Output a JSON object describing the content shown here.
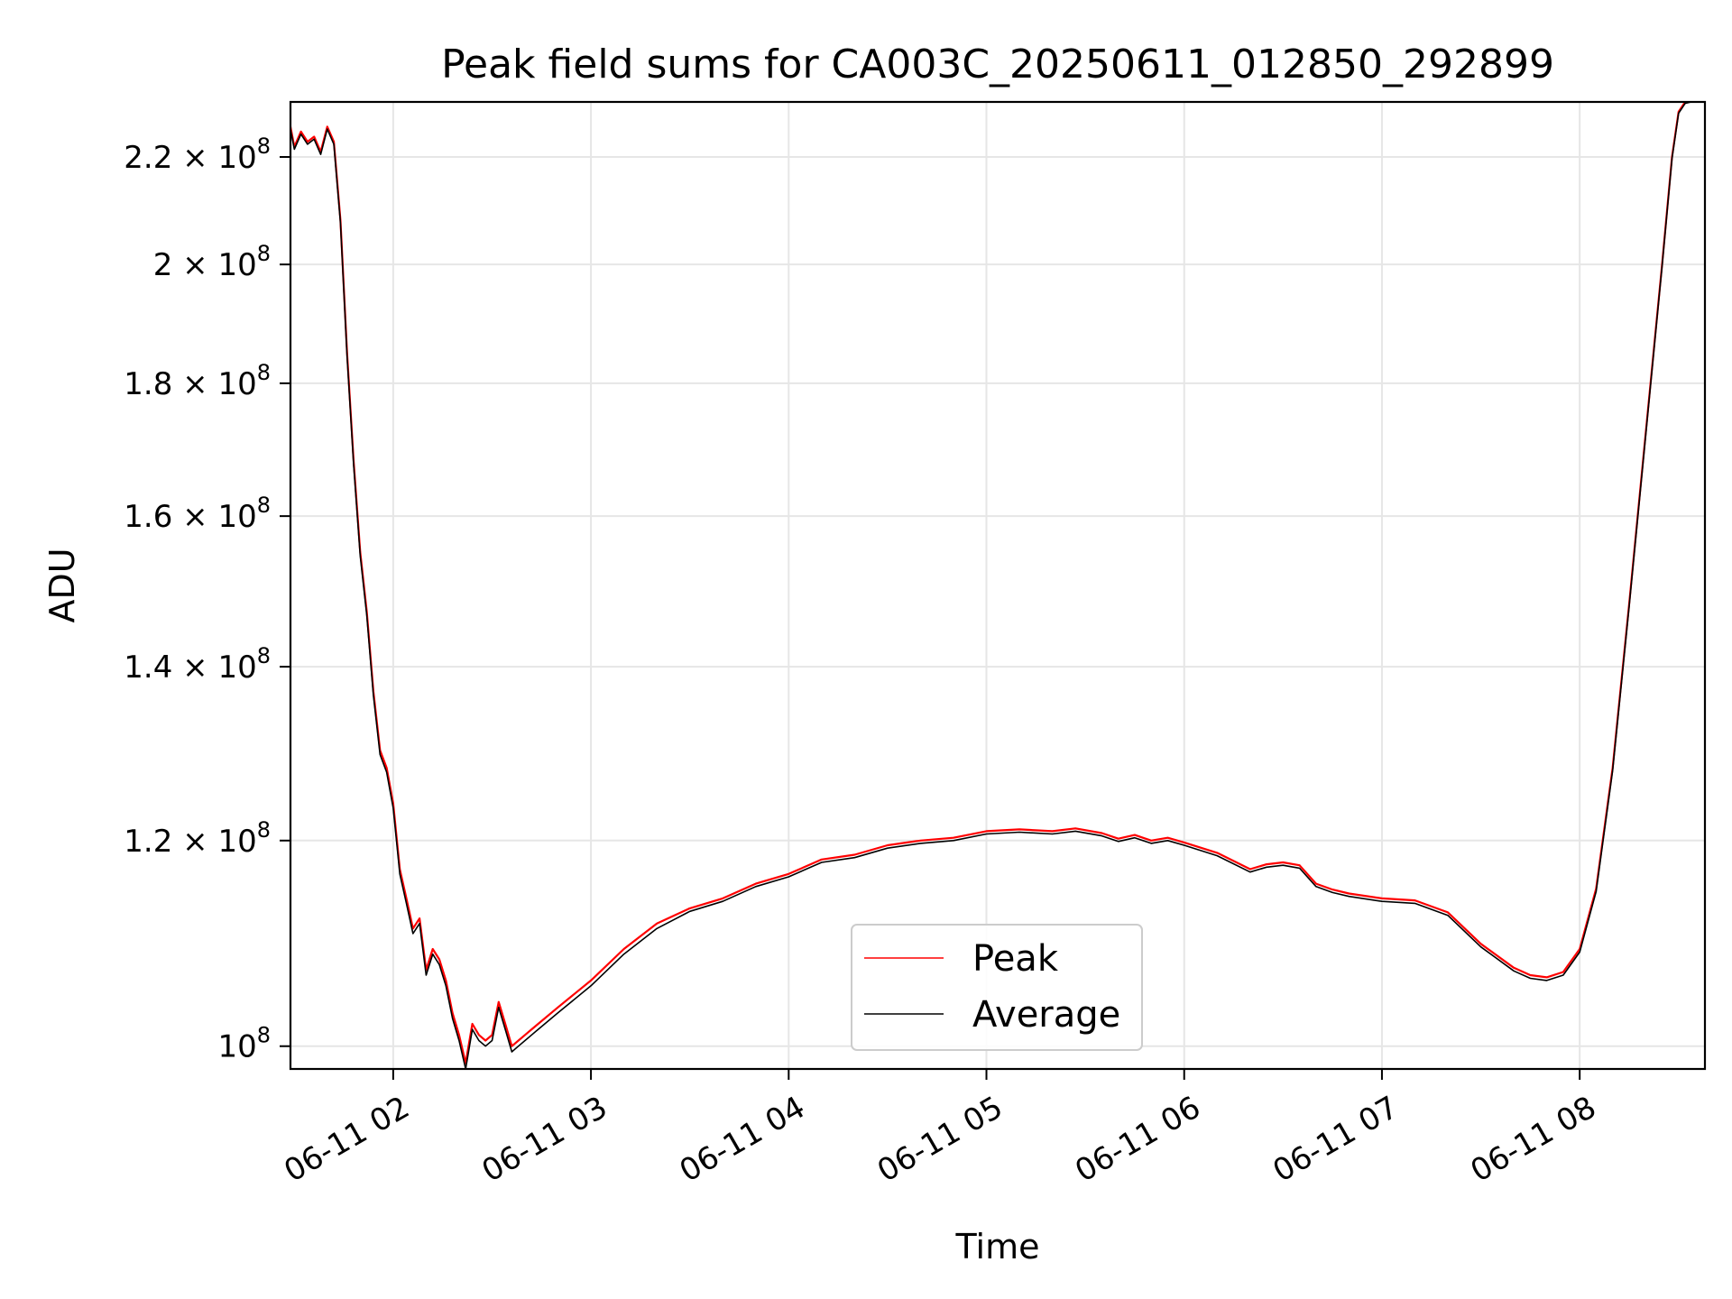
{
  "chart_data": {
    "type": "line",
    "title": "Peak field sums for CA003C_20250611_012850_292899",
    "xlabel": "Time",
    "ylabel": "ADU",
    "grid": true,
    "legend_position": "lower center",
    "x_tick_labels": [
      "06-11 02",
      "06-11 03",
      "06-11 04",
      "06-11 05",
      "06-11 06",
      "06-11 07",
      "06-11 08"
    ],
    "xlim": [
      "06-11 01:28:50",
      "06-11 08:38:00"
    ],
    "y_scale": "log",
    "ylim": [
      98000000,
      231000000
    ],
    "y_ticks": [
      {
        "value": 100000000,
        "mantissa": "",
        "base": "10",
        "exp": "8"
      },
      {
        "value": 120000000,
        "mantissa": "1.2",
        "base": "10",
        "exp": "8"
      },
      {
        "value": 140000000,
        "mantissa": "1.4",
        "base": "10",
        "exp": "8"
      },
      {
        "value": 160000000,
        "mantissa": "1.6",
        "base": "10",
        "exp": "8"
      },
      {
        "value": 180000000,
        "mantissa": "1.8",
        "base": "10",
        "exp": "8"
      },
      {
        "value": 200000000,
        "mantissa": "2",
        "base": "10",
        "exp": "8"
      },
      {
        "value": 220000000,
        "mantissa": "2.2",
        "base": "10",
        "exp": "8"
      }
    ],
    "series": [
      {
        "name": "Peak",
        "color": "#ff0000",
        "x": [
          "06-11 01:28:50",
          "06-11 01:30:00",
          "06-11 01:32:00",
          "06-11 01:34:00",
          "06-11 01:36:00",
          "06-11 01:38:00",
          "06-11 01:40:00",
          "06-11 01:42:00",
          "06-11 01:44:00",
          "06-11 01:46:00",
          "06-11 01:48:00",
          "06-11 01:50:00",
          "06-11 01:52:00",
          "06-11 01:54:00",
          "06-11 01:56:00",
          "06-11 01:58:00",
          "06-11 02:00:00",
          "06-11 02:02:00",
          "06-11 02:04:00",
          "06-11 02:06:00",
          "06-11 02:08:00",
          "06-11 02:10:00",
          "06-11 02:12:00",
          "06-11 02:14:00",
          "06-11 02:16:00",
          "06-11 02:18:00",
          "06-11 02:20:00",
          "06-11 02:22:00",
          "06-11 02:24:00",
          "06-11 02:26:00",
          "06-11 02:28:00",
          "06-11 02:30:00",
          "06-11 02:32:00",
          "06-11 02:34:00",
          "06-11 02:36:00",
          "06-11 02:38:00",
          "06-11 02:40:00",
          "06-11 02:42:00",
          "06-11 02:44:00",
          "06-11 02:50:00",
          "06-11 03:00:00",
          "06-11 03:10:00",
          "06-11 03:20:00",
          "06-11 03:30:00",
          "06-11 03:40:00",
          "06-11 03:50:00",
          "06-11 04:00:00",
          "06-11 04:10:00",
          "06-11 04:20:00",
          "06-11 04:30:00",
          "06-11 04:40:00",
          "06-11 04:50:00",
          "06-11 05:00:00",
          "06-11 05:10:00",
          "06-11 05:20:00",
          "06-11 05:27:00",
          "06-11 05:35:00",
          "06-11 05:40:00",
          "06-11 05:45:00",
          "06-11 05:50:00",
          "06-11 05:55:00",
          "06-11 06:00:00",
          "06-11 06:10:00",
          "06-11 06:20:00",
          "06-11 06:25:00",
          "06-11 06:30:00",
          "06-11 06:35:00",
          "06-11 06:40:00",
          "06-11 06:45:00",
          "06-11 06:50:00",
          "06-11 07:00:00",
          "06-11 07:10:00",
          "06-11 07:20:00",
          "06-11 07:30:00",
          "06-11 07:40:00",
          "06-11 07:45:00",
          "06-11 07:50:00",
          "06-11 07:55:00",
          "06-11 08:00:00",
          "06-11 08:05:00",
          "06-11 08:10:00",
          "06-11 08:15:00",
          "06-11 08:20:00",
          "06-11 08:25:00",
          "06-11 08:28:00",
          "06-11 08:30:00",
          "06-11 08:32:00",
          "06-11 08:38:00"
        ],
        "y": [
          226000000,
          222000000,
          225000000,
          223000000,
          224000000,
          221000000,
          226000000,
          223000000,
          208000000,
          185000000,
          168000000,
          155000000,
          147000000,
          137000000,
          130000000,
          128000000,
          124000000,
          117000000,
          114000000,
          111000000,
          112000000,
          107000000,
          109000000,
          108000000,
          106000000,
          103000000,
          101000000,
          98500000,
          102000000,
          101000000,
          100500000,
          101000000,
          104000000,
          102000000,
          100000000,
          100500000,
          101000000,
          101500000,
          102000000,
          103500000,
          106000000,
          109000000,
          111500000,
          113000000,
          114000000,
          115500000,
          116500000,
          118000000,
          118500000,
          119500000,
          120000000,
          120300000,
          121000000,
          121200000,
          121000000,
          121300000,
          120800000,
          120200000,
          120600000,
          120000000,
          120300000,
          119800000,
          118700000,
          117000000,
          117500000,
          117700000,
          117400000,
          115500000,
          114900000,
          114500000,
          114000000,
          113800000,
          112600000,
          109500000,
          107200000,
          106500000,
          106300000,
          106800000,
          109000000,
          115000000,
          128000000,
          148000000,
          172000000,
          200000000,
          220000000,
          229000000,
          231000000,
          232000000
        ]
      },
      {
        "name": "Average",
        "color": "#000000",
        "x": [
          "06-11 01:28:50",
          "06-11 01:30:00",
          "06-11 01:32:00",
          "06-11 01:34:00",
          "06-11 01:36:00",
          "06-11 01:38:00",
          "06-11 01:40:00",
          "06-11 01:42:00",
          "06-11 01:44:00",
          "06-11 01:46:00",
          "06-11 01:48:00",
          "06-11 01:50:00",
          "06-11 01:52:00",
          "06-11 01:54:00",
          "06-11 01:56:00",
          "06-11 01:58:00",
          "06-11 02:00:00",
          "06-11 02:02:00",
          "06-11 02:04:00",
          "06-11 02:06:00",
          "06-11 02:08:00",
          "06-11 02:10:00",
          "06-11 02:12:00",
          "06-11 02:14:00",
          "06-11 02:16:00",
          "06-11 02:18:00",
          "06-11 02:20:00",
          "06-11 02:22:00",
          "06-11 02:24:00",
          "06-11 02:26:00",
          "06-11 02:28:00",
          "06-11 02:30:00",
          "06-11 02:32:00",
          "06-11 02:34:00",
          "06-11 02:36:00",
          "06-11 02:38:00",
          "06-11 02:40:00",
          "06-11 02:42:00",
          "06-11 02:44:00",
          "06-11 02:50:00",
          "06-11 03:00:00",
          "06-11 03:10:00",
          "06-11 03:20:00",
          "06-11 03:30:00",
          "06-11 03:40:00",
          "06-11 03:50:00",
          "06-11 04:00:00",
          "06-11 04:10:00",
          "06-11 04:20:00",
          "06-11 04:30:00",
          "06-11 04:40:00",
          "06-11 04:50:00",
          "06-11 05:00:00",
          "06-11 05:10:00",
          "06-11 05:20:00",
          "06-11 05:27:00",
          "06-11 05:35:00",
          "06-11 05:40:00",
          "06-11 05:45:00",
          "06-11 05:50:00",
          "06-11 05:55:00",
          "06-11 06:00:00",
          "06-11 06:10:00",
          "06-11 06:20:00",
          "06-11 06:25:00",
          "06-11 06:30:00",
          "06-11 06:35:00",
          "06-11 06:40:00",
          "06-11 06:45:00",
          "06-11 06:50:00",
          "06-11 07:00:00",
          "06-11 07:10:00",
          "06-11 07:20:00",
          "06-11 07:30:00",
          "06-11 07:40:00",
          "06-11 07:45:00",
          "06-11 07:50:00",
          "06-11 07:55:00",
          "06-11 08:00:00",
          "06-11 08:05:00",
          "06-11 08:10:00",
          "06-11 08:15:00",
          "06-11 08:20:00",
          "06-11 08:25:00",
          "06-11 08:28:00",
          "06-11 08:30:00",
          "06-11 08:32:00",
          "06-11 08:38:00"
        ],
        "y": [
          225500000,
          221500000,
          224500000,
          222500000,
          223500000,
          220500000,
          225500000,
          222500000,
          207500000,
          184500000,
          167500000,
          154500000,
          146500000,
          136500000,
          129500000,
          127500000,
          123500000,
          116500000,
          113500000,
          110500000,
          111500000,
          106500000,
          108500000,
          107500000,
          105500000,
          102500000,
          100500000,
          98000000,
          101500000,
          100500000,
          100000000,
          100500000,
          103500000,
          101500000,
          99500000,
          100000000,
          100500000,
          101000000,
          101500000,
          103000000,
          105500000,
          108500000,
          111000000,
          112700000,
          113700000,
          115200000,
          116200000,
          117700000,
          118200000,
          119200000,
          119700000,
          120000000,
          120700000,
          120900000,
          120700000,
          121000000,
          120500000,
          119900000,
          120300000,
          119700000,
          120000000,
          119500000,
          118400000,
          116700000,
          117200000,
          117400000,
          117100000,
          115200000,
          114600000,
          114200000,
          113700000,
          113500000,
          112300000,
          109200000,
          106900000,
          106200000,
          106000000,
          106500000,
          108700000,
          114700000,
          127700000,
          147700000,
          171700000,
          199700000,
          219700000,
          228700000,
          230700000,
          231700000
        ]
      }
    ]
  }
}
